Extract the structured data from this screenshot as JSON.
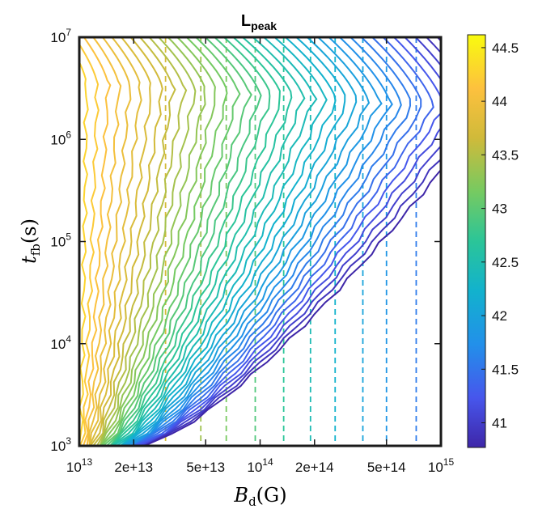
{
  "chart_data": {
    "type": "contour",
    "title": {
      "main": "L",
      "sub": "peak"
    },
    "xlabel": {
      "symbol": "B",
      "sub": "d",
      "unit": "(G)"
    },
    "ylabel": {
      "symbol": "t",
      "sub": "fb",
      "unit": "(s)"
    },
    "x_scale": "log",
    "y_scale": "log",
    "xlim": [
      10000000000000.0,
      1000000000000000.0
    ],
    "ylim": [
      1000.0,
      10000000.0
    ],
    "x_ticks": [
      {
        "value": 10000000000000.0,
        "base": "10",
        "exp": "13"
      },
      {
        "value": 20000000000000.0,
        "label": "2e+13"
      },
      {
        "value": 50000000000000.0,
        "label": "5e+13"
      },
      {
        "value": 100000000000000.0,
        "base": "10",
        "exp": "14"
      },
      {
        "value": 200000000000000.0,
        "label": "2e+14"
      },
      {
        "value": 500000000000000.0,
        "label": "5e+14"
      },
      {
        "value": 1000000000000000.0,
        "base": "10",
        "exp": "15"
      }
    ],
    "y_ticks": [
      {
        "value": 1000.0,
        "base": "10",
        "exp": "3"
      },
      {
        "value": 10000.0,
        "base": "10",
        "exp": "4"
      },
      {
        "value": 100000.0,
        "base": "10",
        "exp": "5"
      },
      {
        "value": 1000000.0,
        "base": "10",
        "exp": "6"
      },
      {
        "value": 10000000.0,
        "base": "10",
        "exp": "7"
      }
    ],
    "colorbar": {
      "colormap": "parula",
      "range": [
        40.77,
        44.62
      ],
      "ticks": [
        "41",
        "41.5",
        "42",
        "42.5",
        "43",
        "43.5",
        "44",
        "44.5"
      ],
      "tick_values": [
        41,
        41.5,
        42,
        42.5,
        43,
        43.5,
        44,
        44.5
      ]
    },
    "solid_contours": {
      "count": 42,
      "model": "peak ridge log10 t = 6.55 - 0.12*(log10 B - 13); right of ridge level falls with log10 B, left of ridge level falls with log10 t",
      "annotation": "solid lines: L_peak iso-levels"
    },
    "dashed_contours": {
      "x_positions": [
        30000000000000.0,
        47000000000000.0,
        65000000000000.0,
        94000000000000.0,
        135000000000000.0,
        190000000000000.0,
        260000000000000.0,
        370000000000000.0,
        500000000000000.0,
        730000000000000.0
      ]
    },
    "grid": false,
    "legend": "none"
  }
}
